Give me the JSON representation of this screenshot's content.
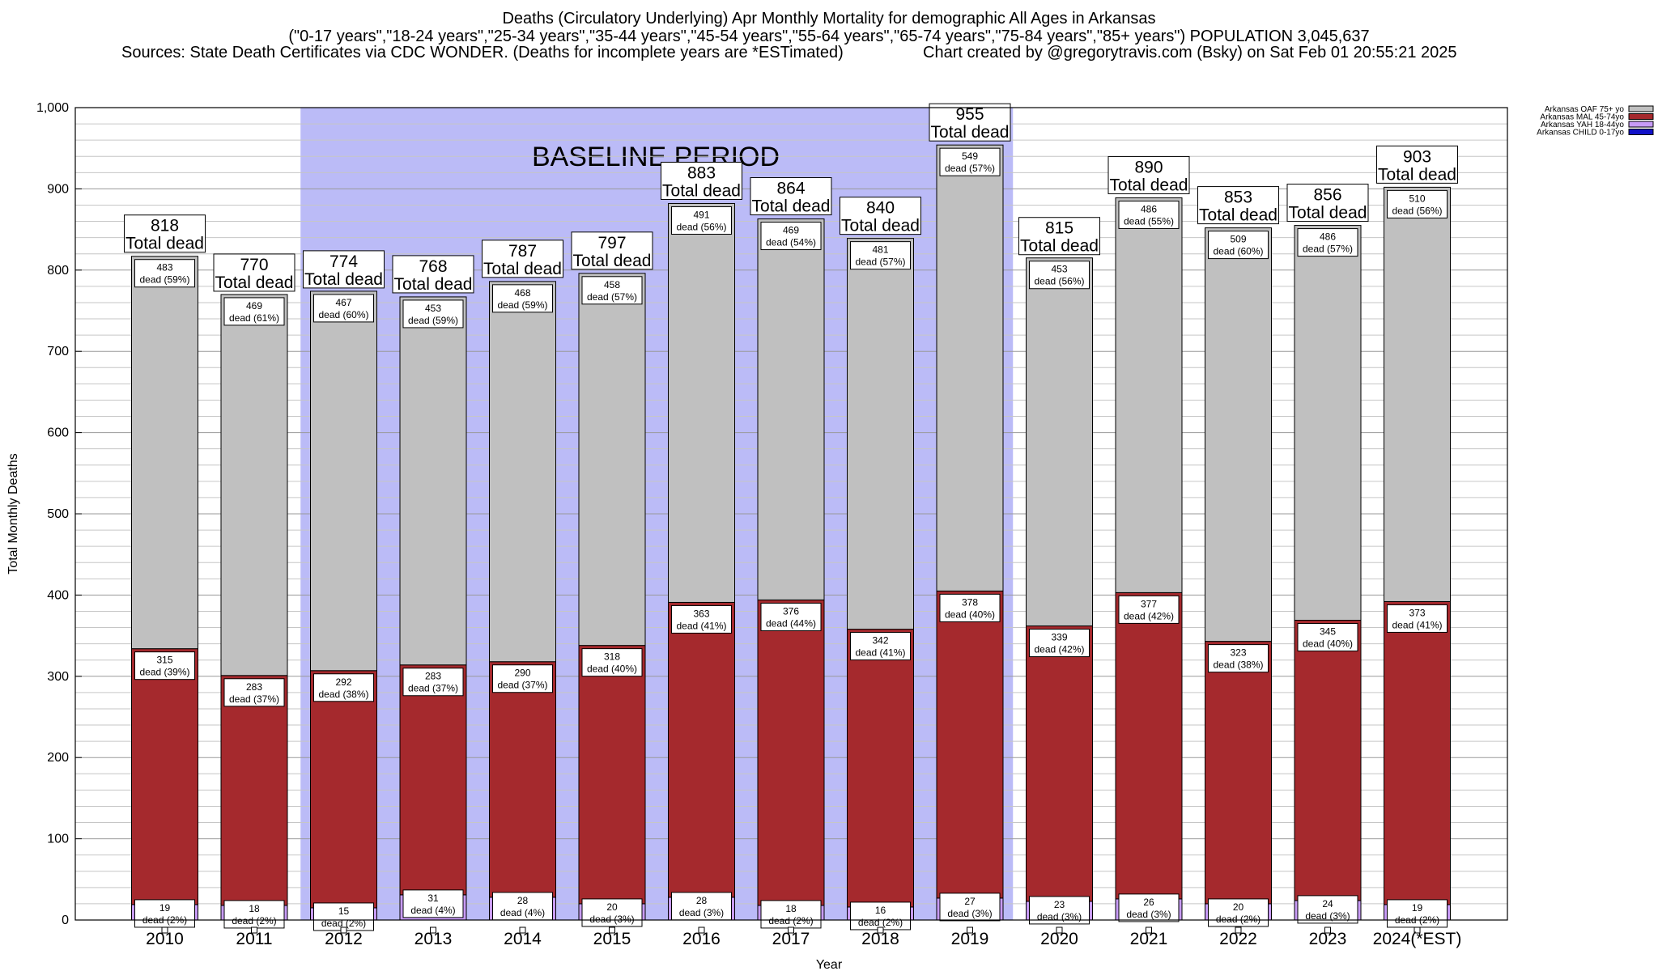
{
  "title": {
    "line1": "Deaths (Circulatory Underlying) Apr Monthly Mortality for demographic All Ages in Arkansas",
    "line2": "(\"0-17 years\",\"18-24 years\",\"25-34 years\",\"35-44 years\",\"45-54 years\",\"55-64 years\",\"65-74 years\",\"75-84 years\",\"85+ years\") POPULATION 3,045,637",
    "sources": "Sources: State Death Certificates via CDC WONDER. (Deaths for incomplete years are *ESTimated)",
    "credit": "Chart created by @gregorytravis.com (Bsky) on Sat Feb 01 20:55:21 2025"
  },
  "chart_data": {
    "type": "bar",
    "stacked": true,
    "xlabel": "Year",
    "ylabel": "Total Monthly Deaths",
    "ylim": [
      0,
      1000
    ],
    "yticks": [
      "0",
      "100",
      "200",
      "300",
      "400",
      "500",
      "600",
      "700",
      "800",
      "900",
      "1,000"
    ],
    "grid": true,
    "legend_position": "top-right",
    "categories": [
      "2010",
      "2011",
      "2012",
      "2013",
      "2014",
      "2015",
      "2016",
      "2017",
      "2018",
      "2019",
      "2020",
      "2021",
      "2022",
      "2023",
      "2024(*EST)"
    ],
    "baseline_period": {
      "label": "BASELINE PERIOD",
      "from": "2012",
      "to": "2019",
      "color": "#bbbbf7"
    },
    "total_prefix": "Total dead",
    "segment_prefix": "dead",
    "totals": [
      818,
      770,
      774,
      768,
      787,
      797,
      883,
      864,
      840,
      955,
      815,
      890,
      853,
      856,
      903
    ],
    "series": [
      {
        "name": "Arkansas CHILD 0-17yo",
        "color": "#1111c8",
        "values": [
          0,
          0,
          0,
          0,
          0,
          0,
          0,
          0,
          0,
          0,
          0,
          0,
          0,
          0,
          0
        ],
        "labels": [
          "",
          "",
          "",
          "",
          "",
          "",
          "",
          "",
          "",
          "",
          "",
          "",
          "",
          "",
          ""
        ]
      },
      {
        "name": "Arkansas YAH 18-44yo",
        "color": "#c89bf7",
        "values": [
          19,
          18,
          15,
          31,
          28,
          20,
          28,
          18,
          16,
          27,
          23,
          26,
          20,
          24,
          19
        ],
        "pcts": [
          "(2%)",
          "(2%)",
          "(2%)",
          "(4%)",
          "(4%)",
          "(3%)",
          "(3%)",
          "(2%)",
          "(2%)",
          "(3%)",
          "(3%)",
          "(3%)",
          "(2%)",
          "(3%)",
          "(2%)"
        ]
      },
      {
        "name": "Arkansas MAL 45-74yo",
        "color": "#a5292d",
        "values": [
          315,
          283,
          292,
          283,
          290,
          318,
          363,
          376,
          342,
          378,
          339,
          377,
          323,
          345,
          373
        ],
        "pcts": [
          "(39%)",
          "(37%)",
          "(38%)",
          "(37%)",
          "(37%)",
          "(40%)",
          "(41%)",
          "(44%)",
          "(41%)",
          "(40%)",
          "(42%)",
          "(42%)",
          "(38%)",
          "(40%)",
          "(41%)"
        ]
      },
      {
        "name": "Arkansas OAF 75+ yo",
        "color": "#c0c0c0",
        "values": [
          483,
          469,
          467,
          453,
          468,
          458,
          491,
          469,
          481,
          549,
          453,
          486,
          509,
          486,
          510
        ],
        "pcts": [
          "(59%)",
          "(61%)",
          "(60%)",
          "(59%)",
          "(59%)",
          "(57%)",
          "(56%)",
          "(54%)",
          "(57%)",
          "(57%)",
          "(56%)",
          "(55%)",
          "(60%)",
          "(57%)",
          "(56%)"
        ]
      }
    ]
  }
}
